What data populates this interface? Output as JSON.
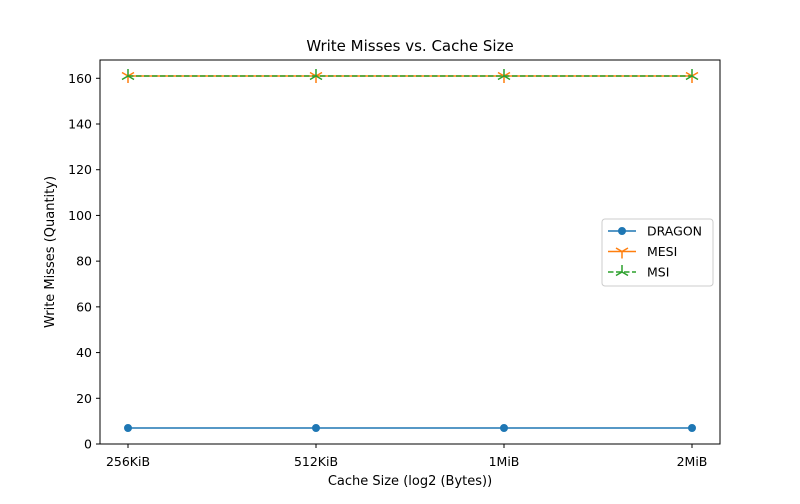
{
  "chart_data": {
    "type": "line",
    "title": "Write Misses vs. Cache Size",
    "xlabel": "Cache Size (log2 (Bytes))",
    "ylabel": "Write Misses (Quantity)",
    "categories": [
      "256KiB",
      "512KiB",
      "1MiB",
      "2MiB"
    ],
    "ylim": [
      0,
      168
    ],
    "yticks": [
      0,
      20,
      40,
      60,
      80,
      100,
      120,
      140,
      160
    ],
    "grid": false,
    "legend_position": "center-right",
    "series": [
      {
        "name": "DRAGON",
        "values": [
          7,
          7,
          7,
          7
        ],
        "color": "#1f77b4",
        "marker": "circle",
        "linestyle": "solid"
      },
      {
        "name": "MESI",
        "values": [
          161,
          161,
          161,
          161
        ],
        "color": "#ff7f0e",
        "marker": "tri-down",
        "linestyle": "solid"
      },
      {
        "name": "MSI",
        "values": [
          161,
          161,
          161,
          161
        ],
        "color": "#2ca02c",
        "marker": "tri-up",
        "linestyle": "dashed"
      }
    ]
  }
}
